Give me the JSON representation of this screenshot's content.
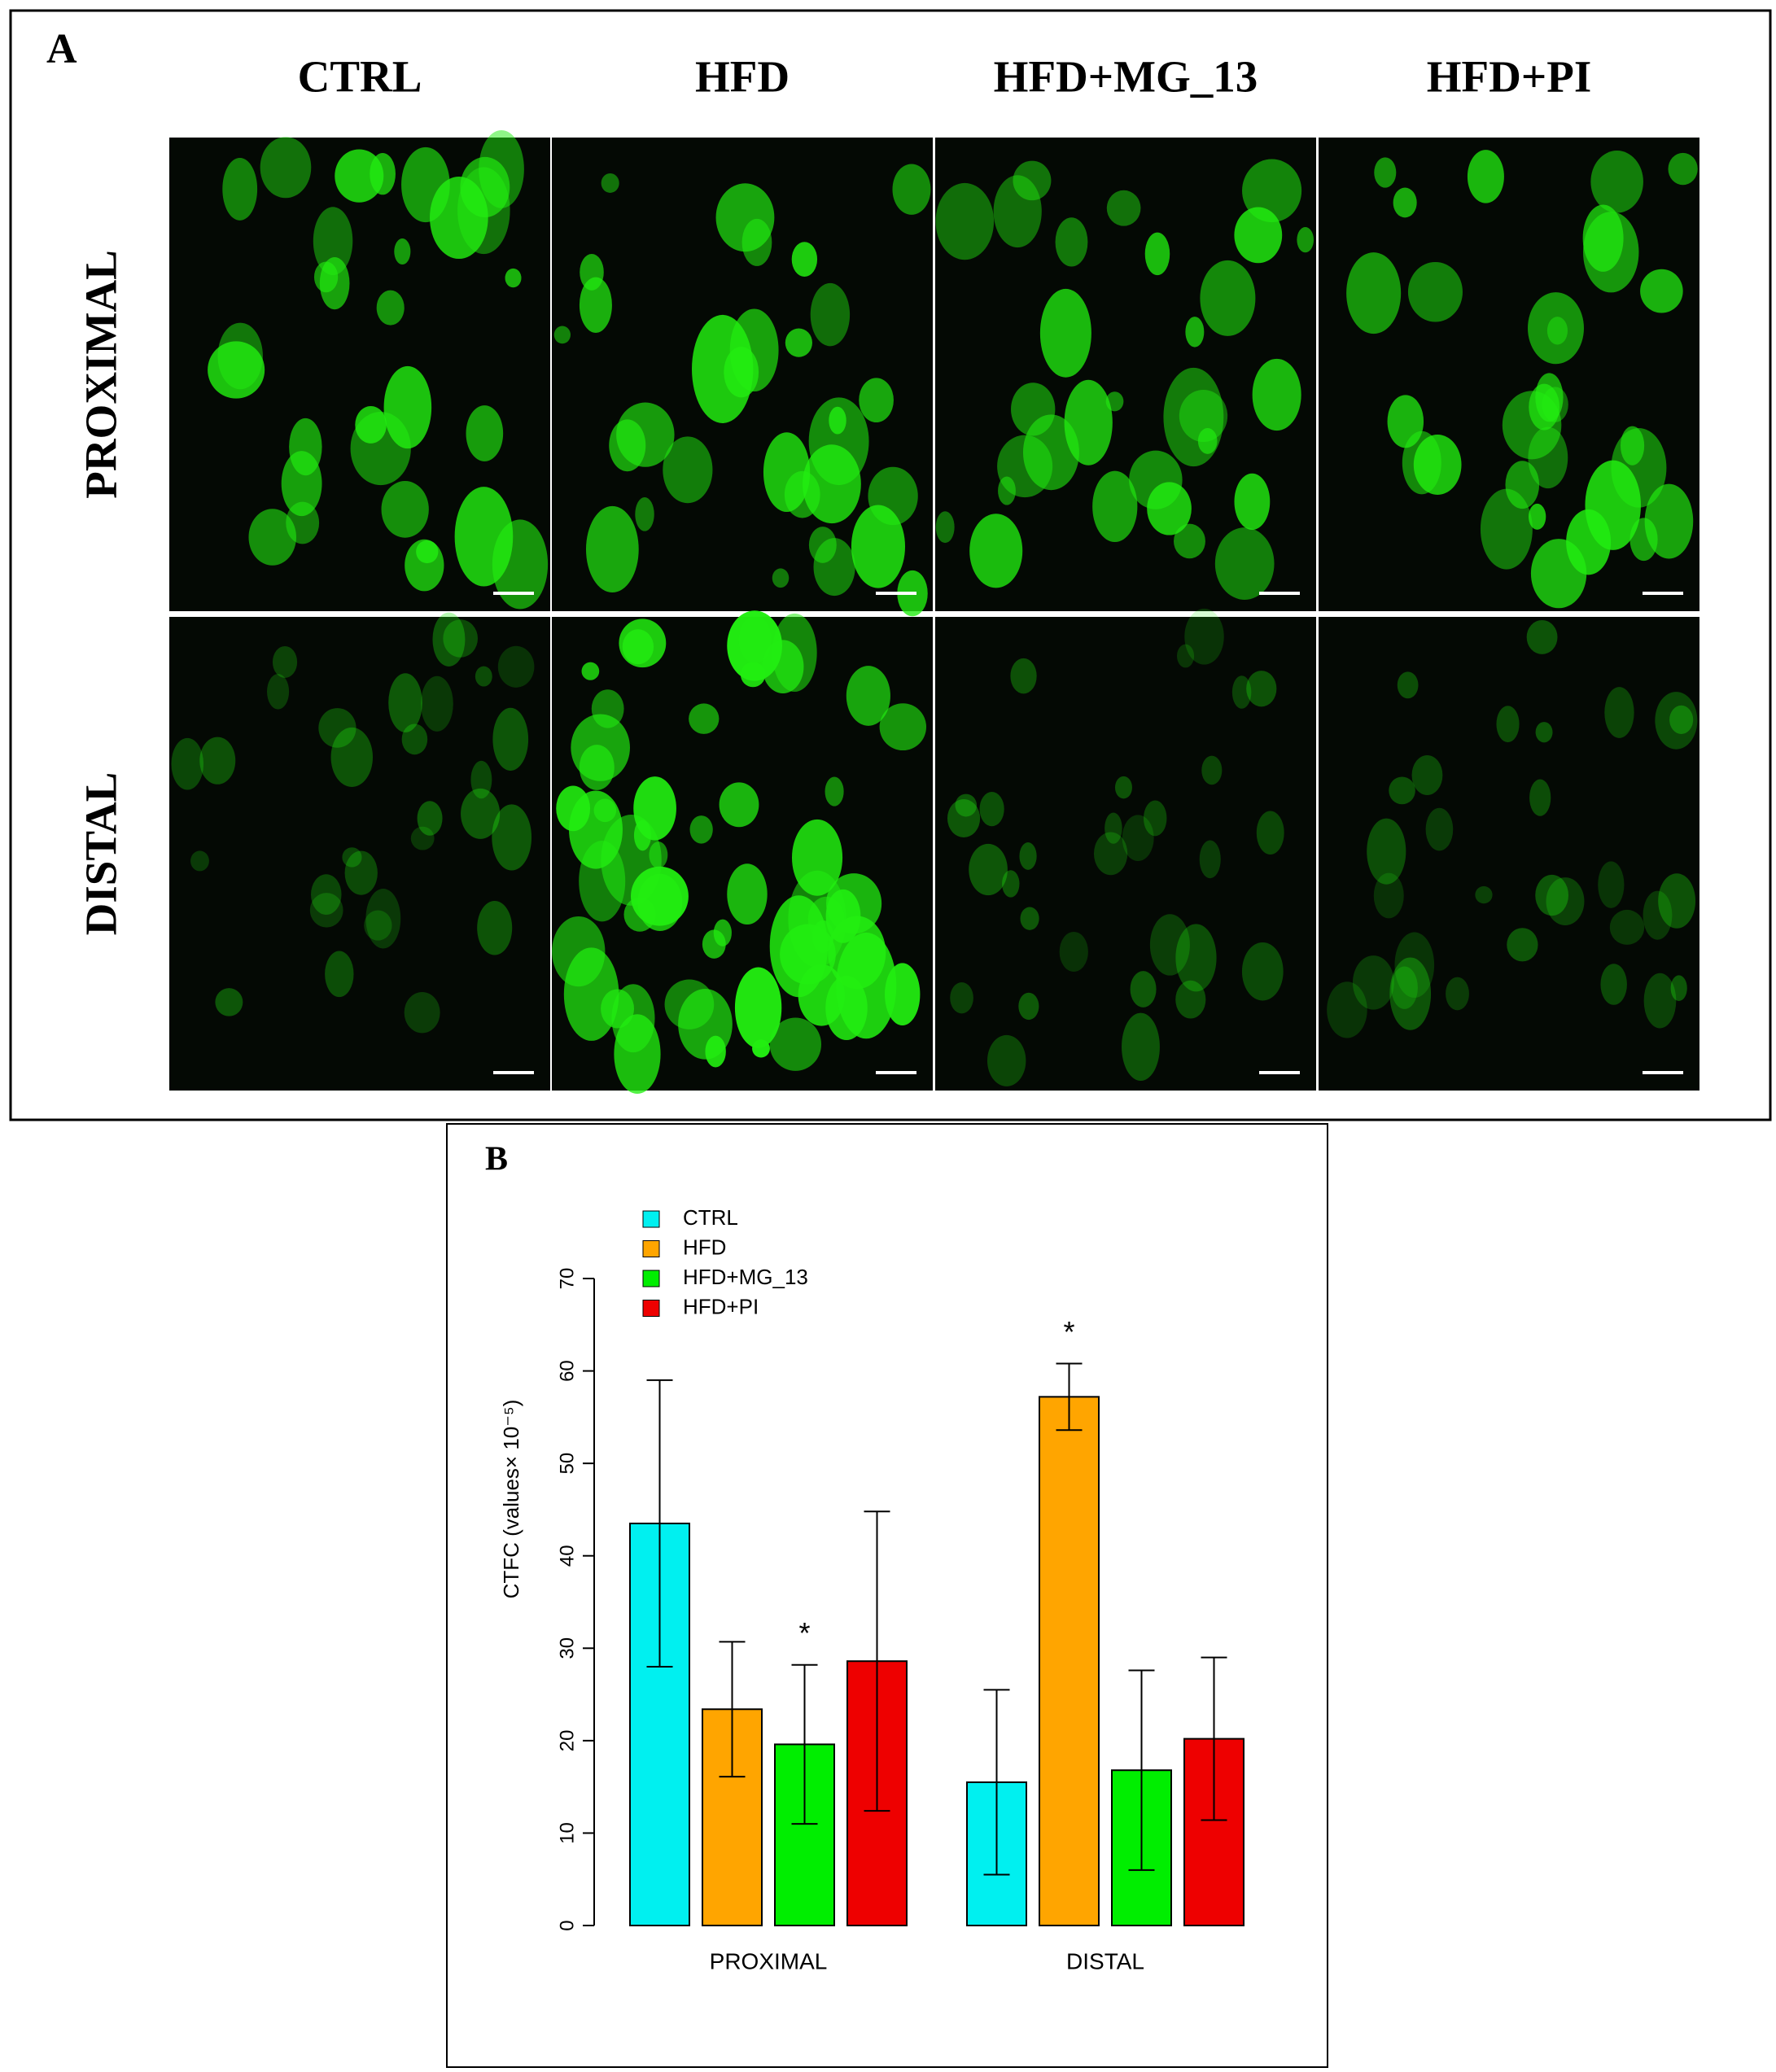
{
  "panel_a": {
    "label": "A",
    "columns": [
      "CTRL",
      "HFD",
      "HFD+MG_13",
      "HFD+PI"
    ],
    "rows": [
      "PROXIMAL",
      "DISTAL"
    ]
  },
  "chart_data": {
    "type": "bar",
    "panel_label": "B",
    "y_label": "CTFC (values× 10⁻⁵)",
    "categories": [
      "PROXIMAL",
      "DISTAL"
    ],
    "series": [
      {
        "name": "CTRL",
        "color": "#00f0f0",
        "values": [
          43.5,
          15.5
        ],
        "errors": [
          15.5,
          10
        ],
        "annotations": [
          null,
          null
        ]
      },
      {
        "name": "HFD",
        "color": "#ffa500",
        "values": [
          23.4,
          57.2
        ],
        "errors": [
          7.3,
          3.6
        ],
        "annotations": [
          null,
          "*"
        ]
      },
      {
        "name": "HFD+MG_13",
        "color": "#00ee00",
        "values": [
          19.6,
          16.8
        ],
        "errors": [
          8.6,
          10.8
        ],
        "annotations": [
          "*",
          null
        ]
      },
      {
        "name": "HFD+PI",
        "color": "#ee0000",
        "values": [
          28.6,
          20.2
        ],
        "errors": [
          16.2,
          8.8
        ],
        "annotations": [
          null,
          null
        ]
      }
    ],
    "ylim": [
      0,
      70
    ],
    "yticks": [
      0,
      10,
      20,
      30,
      40,
      50,
      60,
      70
    ],
    "grid": false,
    "legend": "top-left"
  }
}
